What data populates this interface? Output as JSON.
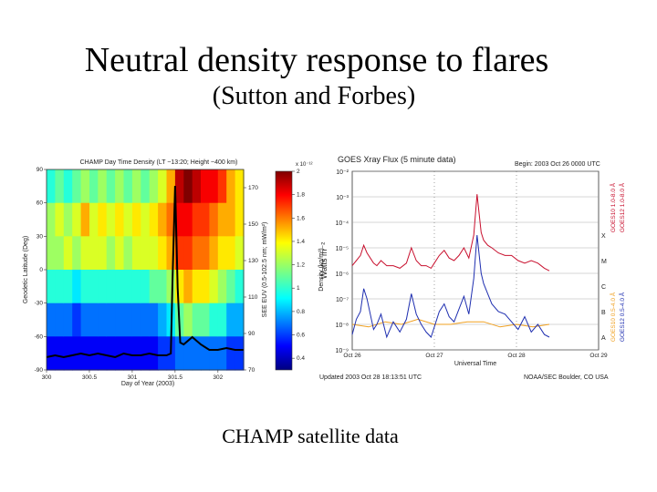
{
  "slide": {
    "title": "Neutral density response to flares",
    "subtitle": "(Sutton and Forbes)",
    "caption": "CHAMP satellite data"
  },
  "colors": {
    "goes_long": "#c8102e",
    "goes_short": "#1f2fb0",
    "goes_secondary": "#f0a020",
    "euv_line": "#000000"
  },
  "chart_data": [
    {
      "type": "heatmap",
      "title": "CHAMP Day Time Density (LT ~13:20; Height ~400 km)",
      "xlabel": "Day of Year (2003)",
      "ylabel": "Geodetic Latitude (Deg)",
      "y2label": "SEE EUV (0.5-102.5 nm; mW/m²)",
      "colorbar_label": "Density (kg/m³)",
      "colorbar_exponent": "x 10⁻¹²",
      "colorbar_ticks": [
        "2",
        "1.8",
        "1.6",
        "1.4",
        "1.2",
        "1",
        "0.8",
        "0.6",
        "0.4"
      ],
      "xlim": [
        300,
        302.3
      ],
      "ylim": [
        -90,
        90
      ],
      "y2lim": [
        70,
        180
      ],
      "clim": [
        0.3,
        2.0
      ],
      "x_ticks": [
        "300",
        "300.5",
        "301",
        "301.5",
        "302"
      ],
      "y_ticks": [
        "90",
        "60",
        "30",
        "0",
        "-30",
        "-60",
        "-90"
      ],
      "y2_ticks": [
        "170",
        "150",
        "130",
        "110",
        "90",
        "70"
      ],
      "grid": false,
      "latitude_bins": [
        75,
        45,
        15,
        -15,
        -45,
        -75
      ],
      "density_columns": [
        {
          "day": 300.05,
          "density": [
            1.0,
            1.2,
            1.2,
            1.0,
            0.7,
            0.5
          ]
        },
        {
          "day": 300.15,
          "density": [
            1.1,
            1.3,
            1.2,
            1.0,
            0.7,
            0.5
          ]
        },
        {
          "day": 300.25,
          "density": [
            1.0,
            1.2,
            1.3,
            1.0,
            0.7,
            0.5
          ]
        },
        {
          "day": 300.35,
          "density": [
            1.1,
            1.3,
            1.2,
            0.9,
            0.6,
            0.5
          ]
        },
        {
          "day": 300.45,
          "density": [
            1.2,
            1.5,
            1.3,
            1.0,
            0.7,
            0.5
          ]
        },
        {
          "day": 300.55,
          "density": [
            1.1,
            1.3,
            1.3,
            1.0,
            0.7,
            0.5
          ]
        },
        {
          "day": 300.65,
          "density": [
            1.2,
            1.4,
            1.3,
            1.0,
            0.7,
            0.5
          ]
        },
        {
          "day": 300.75,
          "density": [
            1.1,
            1.3,
            1.2,
            1.0,
            0.7,
            0.5
          ]
        },
        {
          "day": 300.85,
          "density": [
            1.2,
            1.4,
            1.3,
            1.0,
            0.7,
            0.5
          ]
        },
        {
          "day": 300.95,
          "density": [
            1.1,
            1.3,
            1.2,
            1.0,
            0.7,
            0.5
          ]
        },
        {
          "day": 301.05,
          "density": [
            1.2,
            1.4,
            1.3,
            1.0,
            0.7,
            0.5
          ]
        },
        {
          "day": 301.15,
          "density": [
            1.1,
            1.3,
            1.3,
            1.0,
            0.7,
            0.5
          ]
        },
        {
          "day": 301.25,
          "density": [
            1.2,
            1.4,
            1.3,
            1.1,
            0.7,
            0.5
          ]
        },
        {
          "day": 301.35,
          "density": [
            1.3,
            1.5,
            1.4,
            1.1,
            0.8,
            0.6
          ]
        },
        {
          "day": 301.45,
          "density": [
            1.5,
            1.6,
            1.5,
            1.2,
            0.9,
            0.6
          ]
        },
        {
          "day": 301.55,
          "density": [
            1.9,
            1.8,
            1.7,
            1.4,
            1.1,
            0.7
          ]
        },
        {
          "day": 301.65,
          "density": [
            2.0,
            1.8,
            1.7,
            1.5,
            1.2,
            0.7
          ]
        },
        {
          "day": 301.75,
          "density": [
            1.9,
            1.7,
            1.6,
            1.4,
            1.1,
            0.7
          ]
        },
        {
          "day": 301.85,
          "density": [
            1.8,
            1.7,
            1.6,
            1.4,
            1.1,
            0.7
          ]
        },
        {
          "day": 301.95,
          "density": [
            1.8,
            1.6,
            1.5,
            1.3,
            1.0,
            0.7
          ]
        },
        {
          "day": 302.05,
          "density": [
            1.7,
            1.5,
            1.4,
            1.2,
            1.0,
            0.7
          ]
        },
        {
          "day": 302.15,
          "density": [
            1.5,
            1.5,
            1.4,
            1.1,
            0.8,
            0.6
          ]
        },
        {
          "day": 302.25,
          "density": [
            1.4,
            1.4,
            1.3,
            1.0,
            0.8,
            0.6
          ]
        }
      ],
      "euv_series": {
        "x": [
          300.0,
          300.1,
          300.2,
          300.3,
          300.4,
          300.5,
          300.6,
          300.7,
          300.8,
          300.9,
          301.0,
          301.1,
          301.2,
          301.3,
          301.4,
          301.45,
          301.47,
          301.5,
          301.53,
          301.56,
          301.6,
          301.7,
          301.8,
          301.9,
          302.0,
          302.1,
          302.2,
          302.3
        ],
        "y": [
          77,
          78,
          77,
          78,
          79,
          78,
          79,
          78,
          77,
          79,
          78,
          78,
          79,
          78,
          78,
          79,
          120,
          171,
          115,
          85,
          84,
          88,
          84,
          81,
          81,
          82,
          81,
          81
        ]
      }
    },
    {
      "type": "line",
      "title": "GOES Xray Flux (5 minute data)",
      "begin_label": "Begin: 2003 Oct 26 0000 UTC",
      "xlabel": "Universal Time",
      "ylabel": "Watts m⁻²",
      "updated_label": "Updated 2003 Oct 28 18:13:51 UTC",
      "credit_label": "NOAA/SEC Boulder, CO USA",
      "ylim_log10": [
        -9,
        -2
      ],
      "y_ticks": [
        "10⁻²",
        "10⁻³",
        "10⁻⁴",
        "10⁻⁵",
        "10⁻⁶",
        "10⁻⁷",
        "10⁻⁸",
        "10⁻⁹"
      ],
      "x_ticks": [
        "Oct 26",
        "Oct 27",
        "Oct 28",
        "Oct 29"
      ],
      "flare_classes": [
        "X",
        "M",
        "C",
        "B",
        "A"
      ],
      "legend": [
        "GOES12 1.0-8.0 Å",
        "GOES10 1.0-8.0 Å",
        "GOES12 0.5-4.0 Å",
        "GOES10 0.5-4.0 Å"
      ],
      "grid": true,
      "series": [
        {
          "name": "GOES12 1.0-8.0 Å",
          "x_days": [
            0.0,
            0.05,
            0.1,
            0.14,
            0.18,
            0.22,
            0.26,
            0.3,
            0.35,
            0.42,
            0.5,
            0.58,
            0.66,
            0.72,
            0.78,
            0.84,
            0.9,
            0.96,
            1.0,
            1.06,
            1.12,
            1.18,
            1.24,
            1.3,
            1.36,
            1.42,
            1.48,
            1.52,
            1.55,
            1.57,
            1.6,
            1.65,
            1.7,
            1.78,
            1.86,
            1.94,
            2.02,
            2.1,
            2.18,
            2.26,
            2.34,
            2.4
          ],
          "log10_flux": [
            -5.7,
            -5.5,
            -5.3,
            -4.9,
            -5.2,
            -5.4,
            -5.6,
            -5.7,
            -5.5,
            -5.7,
            -5.7,
            -5.8,
            -5.6,
            -5.0,
            -5.5,
            -5.7,
            -5.7,
            -5.8,
            -5.6,
            -5.3,
            -5.1,
            -5.4,
            -5.5,
            -5.3,
            -5.0,
            -5.4,
            -4.5,
            -2.9,
            -3.8,
            -4.4,
            -4.7,
            -4.9,
            -5.0,
            -5.2,
            -5.3,
            -5.3,
            -5.5,
            -5.6,
            -5.5,
            -5.6,
            -5.8,
            -5.9
          ]
        },
        {
          "name": "GOES12 0.5-4.0 Å",
          "x_days": [
            0.0,
            0.05,
            0.1,
            0.14,
            0.18,
            0.22,
            0.26,
            0.3,
            0.35,
            0.42,
            0.5,
            0.58,
            0.66,
            0.72,
            0.78,
            0.84,
            0.9,
            0.96,
            1.0,
            1.06,
            1.12,
            1.18,
            1.24,
            1.3,
            1.36,
            1.42,
            1.48,
            1.52,
            1.55,
            1.57,
            1.6,
            1.65,
            1.7,
            1.78,
            1.86,
            1.94,
            2.02,
            2.1,
            2.18,
            2.26,
            2.34,
            2.4
          ],
          "log10_flux": [
            -8.4,
            -7.8,
            -7.5,
            -6.6,
            -7.0,
            -7.6,
            -8.2,
            -8.0,
            -7.6,
            -8.5,
            -7.9,
            -8.3,
            -7.8,
            -6.8,
            -7.6,
            -8.0,
            -8.3,
            -8.5,
            -8.1,
            -7.5,
            -7.2,
            -7.7,
            -7.9,
            -7.4,
            -6.9,
            -7.6,
            -6.2,
            -4.5,
            -5.4,
            -6.0,
            -6.4,
            -6.8,
            -7.2,
            -7.5,
            -7.6,
            -7.9,
            -8.2,
            -7.7,
            -8.3,
            -8.0,
            -8.4,
            -8.5
          ]
        },
        {
          "name": "GOES10 0.5-4.0 Å",
          "x_days": [
            0.0,
            0.2,
            0.4,
            0.6,
            0.8,
            1.0,
            1.2,
            1.4,
            1.6,
            1.8,
            2.0,
            2.2,
            2.4
          ],
          "log10_flux": [
            -8.0,
            -8.1,
            -7.9,
            -8.0,
            -7.8,
            -8.0,
            -8.0,
            -7.9,
            -7.9,
            -8.1,
            -8.0,
            -8.1,
            -8.0
          ]
        }
      ]
    }
  ]
}
